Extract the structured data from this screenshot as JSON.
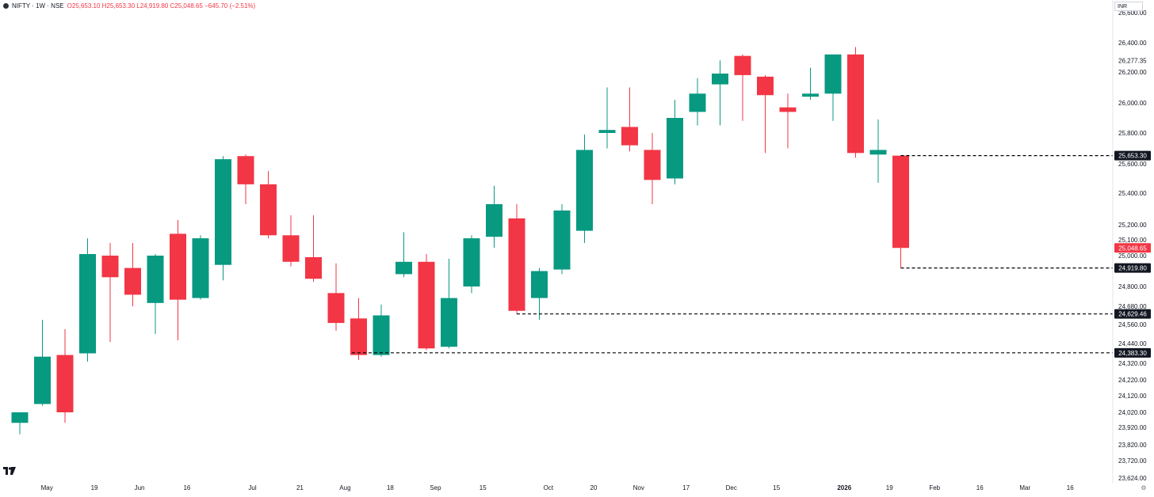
{
  "legend": {
    "symbol": "NIFTY · 1W · NSE",
    "ohlc": "O25,653.10 H25,653.30 L24,919.80 C25,048.65 −645.70 (−2.51%)"
  },
  "currency": "INR",
  "colors": {
    "up": "#089981",
    "down": "#f23645",
    "axis_text": "#131722",
    "line": "#000000"
  },
  "chart_data": {
    "type": "candlestick",
    "ylim": [
      23624,
      26680
    ],
    "x_ticks": [
      {
        "i": 1.2,
        "label": "May"
      },
      {
        "i": 3.3,
        "label": "19"
      },
      {
        "i": 5.3,
        "label": "Jun"
      },
      {
        "i": 7.4,
        "label": "16"
      },
      {
        "i": 10.3,
        "label": "Jul"
      },
      {
        "i": 12.4,
        "label": "21"
      },
      {
        "i": 14.4,
        "label": "Aug"
      },
      {
        "i": 16.4,
        "label": "18"
      },
      {
        "i": 18.4,
        "label": "Sep"
      },
      {
        "i": 20.5,
        "label": "15"
      },
      {
        "i": 23.4,
        "label": "Oct"
      },
      {
        "i": 25.4,
        "label": "20"
      },
      {
        "i": 27.4,
        "label": "Nov"
      },
      {
        "i": 29.5,
        "label": "17"
      },
      {
        "i": 31.5,
        "label": "Dec"
      },
      {
        "i": 33.5,
        "label": "15"
      },
      {
        "i": 36.5,
        "label": "2026"
      },
      {
        "i": 38.5,
        "label": "19"
      },
      {
        "i": 40.5,
        "label": "Feb"
      },
      {
        "i": 42.5,
        "label": "16"
      },
      {
        "i": 44.5,
        "label": "Mar"
      },
      {
        "i": 46.5,
        "label": "16"
      }
    ],
    "y_ticks": [
      23624,
      23720,
      23820,
      23920,
      24020,
      24120,
      24220,
      24320,
      24440,
      24560,
      24680,
      24800,
      25000,
      25100,
      25200,
      25400,
      25600,
      25800,
      26000,
      26200,
      26400,
      26600
    ],
    "y_tick_labels": [
      "23,624.00",
      "23,720.00",
      "23,820.00",
      "23,920.00",
      "24,020.00",
      "24,120.00",
      "24,220.00",
      "24,320.00",
      "24,440.00",
      "24,560.00",
      "24,680.00",
      "24,800.00",
      "25,000.00",
      "25,100.00",
      "25,200.00",
      "25,400.00",
      "25,600.00",
      "25,800.00",
      "26,000.00",
      "26,200.00",
      "26,400.00",
      "26,600.00"
    ],
    "extra_labels": [
      {
        "value": 26277.35,
        "label": "26,277.35"
      }
    ],
    "candles": [
      {
        "o": 23950,
        "h": 24010,
        "l": 23880,
        "c": 24020
      },
      {
        "o": 24070,
        "h": 24590,
        "l": 24060,
        "c": 24360
      },
      {
        "o": 24370,
        "h": 24530,
        "l": 23950,
        "c": 24020
      },
      {
        "o": 24380,
        "h": 25110,
        "l": 24330,
        "c": 25010
      },
      {
        "o": 25000,
        "h": 25080,
        "l": 24450,
        "c": 24860
      },
      {
        "o": 24920,
        "h": 25080,
        "l": 24680,
        "c": 24750
      },
      {
        "o": 24700,
        "h": 25010,
        "l": 24500,
        "c": 25000
      },
      {
        "o": 25140,
        "h": 25230,
        "l": 24460,
        "c": 24720
      },
      {
        "o": 24730,
        "h": 25130,
        "l": 24720,
        "c": 25110
      },
      {
        "o": 24940,
        "h": 25650,
        "l": 24840,
        "c": 25630
      },
      {
        "o": 25650,
        "h": 25660,
        "l": 25330,
        "c": 25460
      },
      {
        "o": 25460,
        "h": 25550,
        "l": 25110,
        "c": 25130
      },
      {
        "o": 25130,
        "h": 25260,
        "l": 24930,
        "c": 24960
      },
      {
        "o": 24990,
        "h": 25260,
        "l": 24830,
        "c": 24850
      },
      {
        "o": 24760,
        "h": 24950,
        "l": 24520,
        "c": 24570
      },
      {
        "o": 24600,
        "h": 24730,
        "l": 24340,
        "c": 24370
      },
      {
        "o": 24370,
        "h": 24690,
        "l": 24360,
        "c": 24620
      },
      {
        "o": 24880,
        "h": 25150,
        "l": 24860,
        "c": 24960
      },
      {
        "o": 24960,
        "h": 25010,
        "l": 24400,
        "c": 24410
      },
      {
        "o": 24420,
        "h": 24980,
        "l": 24410,
        "c": 24730
      },
      {
        "o": 24800,
        "h": 25130,
        "l": 24760,
        "c": 25110
      },
      {
        "o": 25120,
        "h": 25450,
        "l": 25050,
        "c": 25330
      },
      {
        "o": 25240,
        "h": 25330,
        "l": 24630,
        "c": 24650
      },
      {
        "o": 24730,
        "h": 24920,
        "l": 24590,
        "c": 24900
      },
      {
        "o": 24910,
        "h": 25330,
        "l": 24880,
        "c": 25290
      },
      {
        "o": 25160,
        "h": 25790,
        "l": 25080,
        "c": 25690
      },
      {
        "o": 25800,
        "h": 26100,
        "l": 25700,
        "c": 25820
      },
      {
        "o": 25840,
        "h": 26100,
        "l": 25680,
        "c": 25720
      },
      {
        "o": 25690,
        "h": 25800,
        "l": 25330,
        "c": 25490
      },
      {
        "o": 25500,
        "h": 26020,
        "l": 25460,
        "c": 25900
      },
      {
        "o": 25940,
        "h": 26160,
        "l": 25850,
        "c": 26060
      },
      {
        "o": 26120,
        "h": 26280,
        "l": 25850,
        "c": 26190
      },
      {
        "o": 26310,
        "h": 26320,
        "l": 25880,
        "c": 26180
      },
      {
        "o": 26170,
        "h": 26180,
        "l": 25670,
        "c": 26050
      },
      {
        "o": 25970,
        "h": 26060,
        "l": 25700,
        "c": 25940
      },
      {
        "o": 26040,
        "h": 26230,
        "l": 26020,
        "c": 26060
      },
      {
        "o": 26060,
        "h": 26320,
        "l": 25880,
        "c": 26320
      },
      {
        "o": 26320,
        "h": 26370,
        "l": 25640,
        "c": 25670
      },
      {
        "o": 25660,
        "h": 25890,
        "l": 25470,
        "c": 25690
      },
      {
        "o": 25653.1,
        "h": 25653.3,
        "l": 24919.8,
        "c": 25048.65
      }
    ],
    "price_lines": [
      {
        "value": 25653.3,
        "label": "25,653.30",
        "start_i": 39.0,
        "color": "#131722"
      },
      {
        "value": 24919.8,
        "label": "24,919.80",
        "start_i": 39.0,
        "color": "#131722"
      },
      {
        "value": 24629.46,
        "label": "24,629.46",
        "start_i": 22.0,
        "color": "#131722"
      },
      {
        "value": 24383.3,
        "label": "24,383.30",
        "start_i": 14.7,
        "color": "#131722"
      }
    ],
    "last_price": {
      "value": 25048.65,
      "label": "25,048.65",
      "color": "#f23645"
    }
  }
}
